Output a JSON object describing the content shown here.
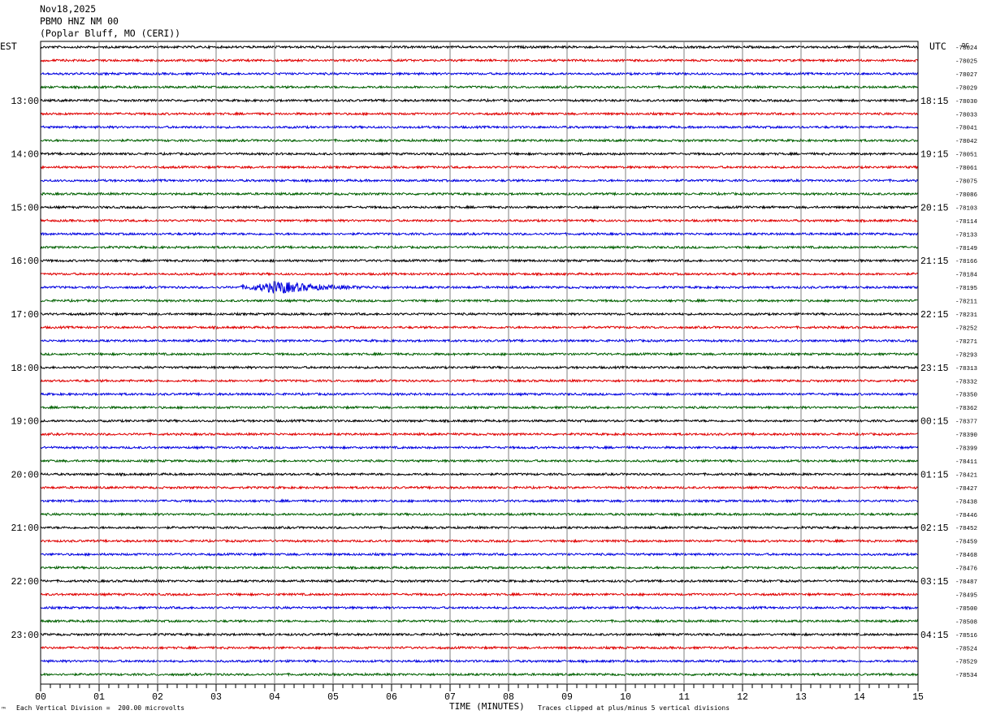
{
  "header": {
    "date": "Nov18,2025",
    "station": "PBMO HNZ NM 00",
    "location": "(Poplar Bluff, MO (CERI))"
  },
  "labels": {
    "left_tz": "EST",
    "right_tz": "UTC",
    "dc_label": "DC"
  },
  "footer": {
    "scale_note": "Each Vertical Division =  200.00 microvolts",
    "xlabel": "TIME (MINUTES)",
    "clip_note": "Traces clipped at plus/minus 5 vertical divisions",
    "corner_mark": "™"
  },
  "colors": {
    "trace_cycle": [
      "#000000",
      "#e00000",
      "#0000e0",
      "#006000"
    ],
    "grid": "#7f7f7f"
  },
  "chart_data": {
    "type": "line",
    "title": "",
    "xlabel": "TIME (MINUTES)",
    "xlim": [
      0,
      15
    ],
    "x_ticks": [
      "00",
      "01",
      "02",
      "03",
      "04",
      "05",
      "06",
      "07",
      "08",
      "09",
      "10",
      "11",
      "12",
      "13",
      "14",
      "15"
    ],
    "rows_per_hour": 4,
    "left_hour_labels": [
      "13:00",
      "14:00",
      "15:00",
      "16:00",
      "17:00",
      "18:00",
      "19:00",
      "20:00",
      "21:00",
      "22:00",
      "23:00"
    ],
    "right_hour_labels": [
      "18:15",
      "19:15",
      "20:15",
      "21:15",
      "22:15",
      "23:15",
      "00:15",
      "01:15",
      "02:15",
      "03:15",
      "04:15"
    ],
    "trace_dc_offsets": [
      -78024,
      -78025,
      -78027,
      -78029,
      -78030,
      -78033,
      -78041,
      -78042,
      -78051,
      -78061,
      -78075,
      -78086,
      -78103,
      -78114,
      -78133,
      -78149,
      -78166,
      -78184,
      -78195,
      -78211,
      -78231,
      -78252,
      -78271,
      -78293,
      -78313,
      -78332,
      -78350,
      -78362,
      -78377,
      -78390,
      -78399,
      -78411,
      -78421,
      -78427,
      -78438,
      -78446,
      -78452,
      -78459,
      -78468,
      -78476,
      -78487,
      -78495,
      -78500,
      -78508,
      -78516,
      -78524,
      -78529,
      -78534
    ],
    "event": {
      "row": 18,
      "start_min": 3.4,
      "peak_min": 4.05,
      "end_min": 6.0
    }
  }
}
